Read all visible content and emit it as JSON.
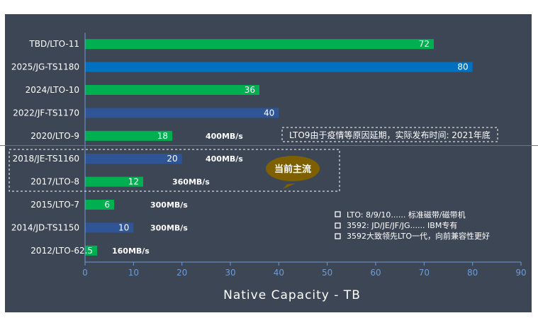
{
  "chart_data": {
    "type": "bar",
    "orientation": "horizontal",
    "categories": [
      "TBD/LTO-11",
      "2025/JG-TS1180",
      "2024/LTO-10",
      "2022/JF-TS1170",
      "2020/LTO-9",
      "2018/JE-TS1160",
      "2017/LTO-8",
      "2015/LTO-7",
      "2014/JD-TS1150",
      "2012/LTO-6"
    ],
    "values": [
      72,
      80,
      36,
      40,
      18,
      20,
      12,
      6,
      10,
      2.5
    ],
    "value_labels": [
      "72",
      "80",
      "36",
      "40",
      "18",
      "20",
      "12",
      "6",
      "10",
      "2.5"
    ],
    "family": [
      "LTO",
      "TS",
      "LTO",
      "TS",
      "LTO",
      "TS",
      "LTO",
      "LTO",
      "TS",
      "LTO"
    ],
    "speeds": [
      "",
      "",
      "",
      "",
      "400MB/s",
      "400MB/s",
      "360MB/s",
      "300MB/s",
      "300MB/s",
      "160MB/s"
    ],
    "xlabel": "Native Capacity - TB",
    "xlim": [
      0,
      90
    ],
    "xticks": [
      0,
      10,
      20,
      30,
      40,
      50,
      60,
      70,
      80,
      90
    ],
    "grid": false,
    "colors": {
      "LTO": "#00b050",
      "TS_bright": "#0070c0",
      "TS": "#2f5597",
      "background": "#3c4655",
      "axis": "#6f9bd4",
      "bubble": "#7f6000",
      "divider": "#c55a11"
    },
    "bright_index": 1,
    "annotations": {
      "note": "LTO9由于疫情等原因延期，实际发布时间: 2021年底",
      "bubble": "当前主流",
      "legend": [
        "LTO: 8/9/10...... 标准磁带/磁带机",
        "3592: JD/JE/JF/JG......  IBM专有",
        "3592大致领先LTO一代，向前兼容性更好"
      ]
    }
  }
}
